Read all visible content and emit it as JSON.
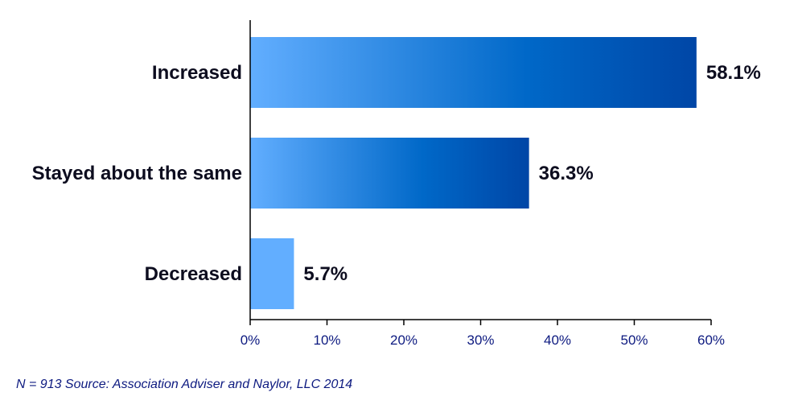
{
  "chart_data": {
    "type": "bar",
    "orientation": "horizontal",
    "categories": [
      "Increased",
      "Stayed about the same",
      "Decreased"
    ],
    "values": [
      58.1,
      36.3,
      5.7
    ],
    "value_labels": [
      "58.1%",
      "36.3%",
      "5.7%"
    ],
    "xlim": [
      0,
      60
    ],
    "x_ticks": [
      0,
      10,
      20,
      30,
      40,
      50,
      60
    ],
    "x_tick_labels": [
      "0%",
      "10%",
      "20%",
      "30%",
      "40%",
      "50%",
      "60%"
    ],
    "grid": false,
    "legend": "none",
    "title": "",
    "xlabel": "",
    "ylabel": ""
  },
  "colors": {
    "bar_light": "#62aeff",
    "bar_mid": "#0068c8",
    "bar_dark": "#0046a6",
    "axis": "#000000",
    "label_text": "#0d0d1f",
    "tick_text": "#0d1a80"
  },
  "footnote": "N = 913 Source: Association Adviser and Naylor, LLC 2014"
}
